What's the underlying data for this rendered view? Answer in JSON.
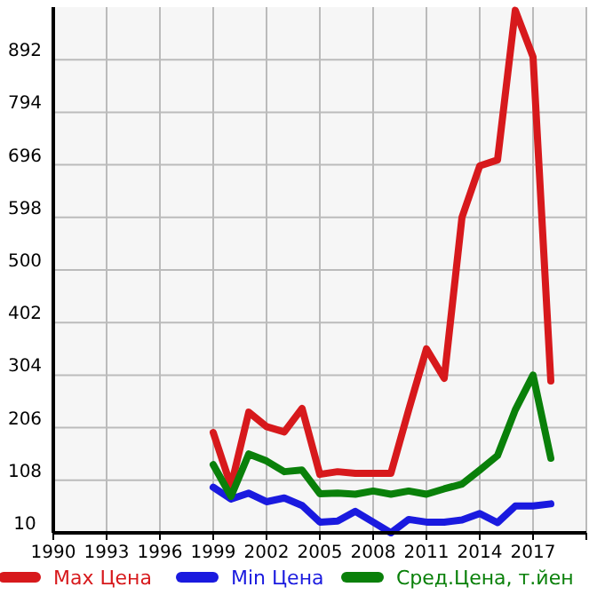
{
  "chart_data": {
    "type": "line",
    "x": [
      1999,
      2000,
      2001,
      2002,
      2003,
      2004,
      2005,
      2006,
      2007,
      2008,
      2009,
      2010,
      2011,
      2012,
      2013,
      2014,
      2015,
      2016,
      2017,
      2018
    ],
    "series": [
      {
        "name": "Max Цена",
        "color": "#d7191c",
        "values": [
          197,
          97,
          235,
          208,
          198,
          242,
          119,
          124,
          121,
          121,
          121,
          239,
          353,
          298,
          598,
          694,
          705,
          984,
          897,
          293
        ]
      },
      {
        "name": "Min Цена",
        "color": "#1a1adf",
        "values": [
          95,
          73,
          84,
          68,
          75,
          61,
          30,
          32,
          50,
          30,
          10,
          35,
          30,
          30,
          34,
          46,
          29,
          60,
          60,
          64
        ]
      },
      {
        "name": "Сред.Цена, т.йен",
        "color": "#0a800a",
        "values": [
          137,
          78,
          157,
          144,
          124,
          127,
          83,
          84,
          82,
          88,
          82,
          88,
          82,
          92,
          101,
          127,
          154,
          239,
          304,
          149
        ]
      }
    ],
    "xlim": [
      1990,
      2020
    ],
    "xticks": [
      1990,
      1993,
      1996,
      1999,
      2002,
      2005,
      2008,
      2011,
      2014,
      2017
    ],
    "ylim": [
      10,
      990
    ],
    "yticks": [
      10,
      108,
      206,
      304,
      402,
      500,
      598,
      696,
      794,
      892
    ],
    "grid": true,
    "legend": "bottom",
    "marker": "none",
    "line_style": "solid"
  }
}
